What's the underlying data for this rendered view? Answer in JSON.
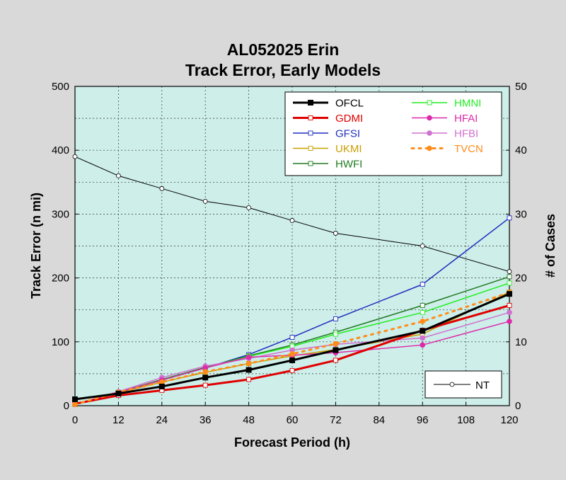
{
  "chart_data": {
    "type": "line",
    "title": "AL052025 Erin",
    "subtitle": "Track Error, Early Models",
    "xlabel": "Forecast Period (h)",
    "ylabel": "Track Error (n mi)",
    "y2label": "# of Cases",
    "x": [
      0,
      12,
      24,
      36,
      48,
      60,
      72,
      96,
      120
    ],
    "xticks": [
      0,
      12,
      24,
      36,
      48,
      60,
      72,
      84,
      96,
      108,
      120
    ],
    "xlim": [
      0,
      120
    ],
    "ylim": [
      0,
      500
    ],
    "yticks": [
      0,
      100,
      200,
      300,
      400,
      500
    ],
    "y2lim": [
      0,
      50
    ],
    "y2ticks": [
      0,
      10,
      20,
      30,
      40,
      50
    ],
    "grid": true,
    "legend_position": "top-right",
    "series": [
      {
        "name": "OFCL",
        "color": "#000000",
        "width": 3,
        "marker": "square-filled",
        "dash": "",
        "values": [
          10,
          19,
          30,
          44,
          56,
          71,
          87,
          117,
          175
        ]
      },
      {
        "name": "GDMI",
        "color": "#e00000",
        "width": 3,
        "marker": "square-open",
        "dash": "",
        "values": [
          3,
          16,
          24,
          32,
          41,
          55,
          71,
          118,
          157
        ]
      },
      {
        "name": "GFSI",
        "color": "#1f2fbf",
        "width": 1.5,
        "marker": "square-open",
        "dash": "",
        "values": [
          2,
          20,
          40,
          59,
          80,
          107,
          136,
          190,
          294
        ]
      },
      {
        "name": "UKMI",
        "color": "#c8a000",
        "width": 1.5,
        "marker": "square-open",
        "dash": "",
        "values": [
          2,
          20,
          37,
          52,
          66,
          78,
          88,
          112,
          178
        ]
      },
      {
        "name": "HWFI",
        "color": "#207a20",
        "width": 1.5,
        "marker": "square-open",
        "dash": "",
        "values": [
          2,
          21,
          41,
          60,
          78,
          95,
          115,
          157,
          202
        ]
      },
      {
        "name": "HMNI",
        "color": "#22ee22",
        "width": 1.5,
        "marker": "square-open",
        "dash": "",
        "values": [
          2,
          21,
          40,
          59,
          77,
          93,
          112,
          146,
          192
        ]
      },
      {
        "name": "HFAI",
        "color": "#dd2aaa",
        "width": 1.5,
        "marker": "circle-filled",
        "dash": "",
        "values": [
          2,
          21,
          40,
          59,
          76,
          79,
          83,
          95,
          132
        ]
      },
      {
        "name": "HFBI",
        "color": "#d070d0",
        "width": 1.5,
        "marker": "circle-filled",
        "dash": "",
        "values": [
          2,
          22,
          44,
          62,
          74,
          87,
          96,
          106,
          146
        ]
      },
      {
        "name": "TVCN",
        "color": "#ff8c1a",
        "width": 3,
        "marker": "circle-filled",
        "dash": "3,7",
        "values": [
          2,
          21,
          37,
          53,
          66,
          81,
          97,
          132,
          177
        ]
      }
    ],
    "cases": {
      "name": "NT",
      "color": "#000000",
      "values": [
        39,
        36,
        34,
        32,
        31,
        29,
        27,
        25,
        21
      ]
    }
  }
}
